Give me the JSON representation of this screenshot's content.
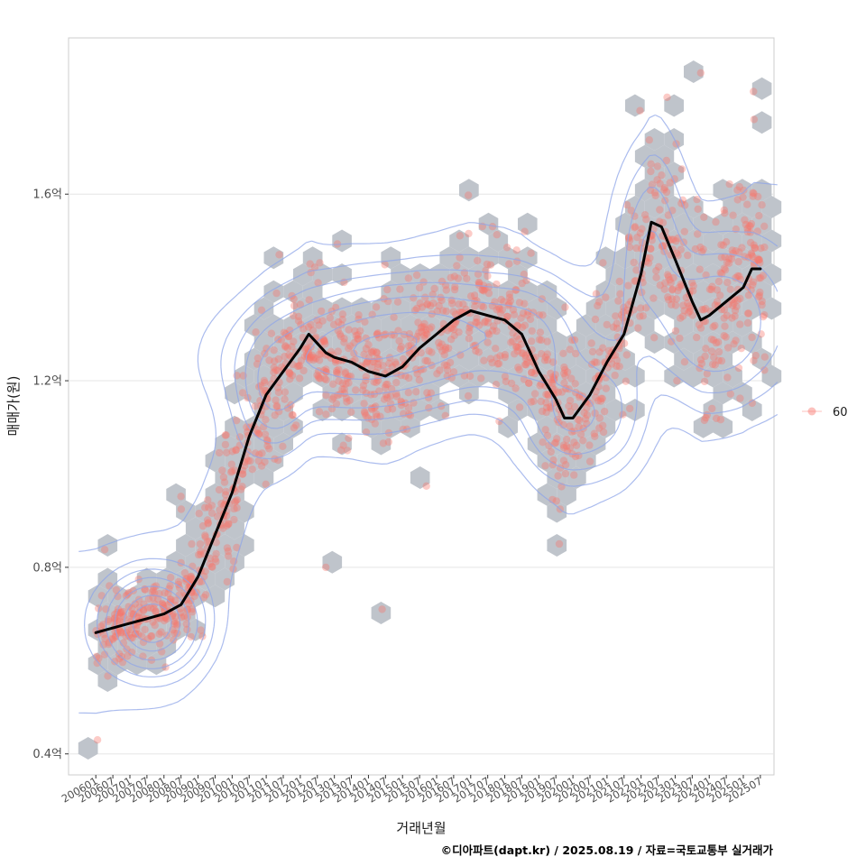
{
  "chart_data": {
    "type": "scatter",
    "xlabel": "거래년월",
    "ylabel": "매매가(원)",
    "caption": "©디아파트(dapt.kr) / 2025.08.19 / 자료=국토교통부 실거래가",
    "x_ticks": [
      "200601",
      "200607",
      "200701",
      "200707",
      "200801",
      "200807",
      "200901",
      "200907",
      "201001",
      "201007",
      "201101",
      "201107",
      "201201",
      "201207",
      "201301",
      "201307",
      "201401",
      "201407",
      "201501",
      "201507",
      "201601",
      "201607",
      "201701",
      "201707",
      "201801",
      "201807",
      "201901",
      "201907",
      "202001",
      "202007",
      "202101",
      "202107",
      "202201",
      "202207",
      "202301",
      "202307",
      "202401",
      "202407",
      "202501",
      "202507"
    ],
    "y_ticks": [
      {
        "value": 0.4,
        "label": "0.4억"
      },
      {
        "value": 0.8,
        "label": "0.8억"
      },
      {
        "value": 1.2,
        "label": "1.2억"
      },
      {
        "value": 1.6,
        "label": "1.6억"
      }
    ],
    "xlim_index": [
      -1.6,
      39.8
    ],
    "ylim": [
      0.355,
      1.935
    ],
    "grid": "horizontal",
    "legend": {
      "position": "right",
      "entries": [
        "60"
      ]
    },
    "series": [
      {
        "name": "moving-average",
        "points": [
          [
            0,
            0.66
          ],
          [
            1,
            0.67
          ],
          [
            2,
            0.68
          ],
          [
            3,
            0.69
          ],
          [
            4,
            0.7
          ],
          [
            5,
            0.72
          ],
          [
            6,
            0.78
          ],
          [
            7,
            0.87
          ],
          [
            8,
            0.96
          ],
          [
            9,
            1.08
          ],
          [
            10,
            1.17
          ],
          [
            11,
            1.22
          ],
          [
            12,
            1.27
          ],
          [
            12.5,
            1.3
          ],
          [
            13,
            1.28
          ],
          [
            13.5,
            1.26
          ],
          [
            14,
            1.25
          ],
          [
            15,
            1.24
          ],
          [
            16,
            1.22
          ],
          [
            17,
            1.21
          ],
          [
            18,
            1.23
          ],
          [
            19,
            1.27
          ],
          [
            20,
            1.3
          ],
          [
            21,
            1.33
          ],
          [
            22,
            1.35
          ],
          [
            23,
            1.34
          ],
          [
            24,
            1.33
          ],
          [
            25,
            1.3
          ],
          [
            26,
            1.22
          ],
          [
            27,
            1.16
          ],
          [
            27.5,
            1.12
          ],
          [
            28,
            1.12
          ],
          [
            29,
            1.17
          ],
          [
            30,
            1.24
          ],
          [
            31,
            1.3
          ],
          [
            32,
            1.43
          ],
          [
            32.6,
            1.54
          ],
          [
            33.2,
            1.53
          ],
          [
            34,
            1.46
          ],
          [
            35,
            1.37
          ],
          [
            35.5,
            1.33
          ],
          [
            36,
            1.34
          ],
          [
            37,
            1.37
          ],
          [
            38,
            1.4
          ],
          [
            38.5,
            1.44
          ],
          [
            39,
            1.44
          ]
        ]
      }
    ],
    "density": {
      "centers": [
        {
          "x": 3.3,
          "y": 0.68,
          "sx": 1.5,
          "sy": 0.055,
          "w": 1.0
        },
        {
          "x": 19.5,
          "y": 1.3,
          "sx": 4.5,
          "sy": 0.075,
          "w": 0.6
        },
        {
          "x": 14.5,
          "y": 1.24,
          "sx": 3.5,
          "sy": 0.07,
          "w": 0.45
        },
        {
          "x": 10.5,
          "y": 1.17,
          "sx": 1.2,
          "sy": 0.07,
          "w": 0.3
        },
        {
          "x": 25.5,
          "y": 1.27,
          "sx": 1.8,
          "sy": 0.08,
          "w": 0.25
        },
        {
          "x": 27.5,
          "y": 1.12,
          "sx": 1.5,
          "sy": 0.07,
          "w": 0.3
        },
        {
          "x": 30.0,
          "y": 1.13,
          "sx": 1.5,
          "sy": 0.08,
          "w": 0.22
        },
        {
          "x": 36.5,
          "y": 1.32,
          "sx": 2.5,
          "sy": 0.1,
          "w": 0.35
        },
        {
          "x": 32.5,
          "y": 1.48,
          "sx": 1.2,
          "sy": 0.12,
          "w": 0.2
        }
      ],
      "levels": [
        0.03,
        0.08,
        0.15,
        0.25,
        0.4,
        0.6,
        0.8
      ]
    },
    "colors": {
      "points": "#f8766d",
      "hex": "#bfc4cb",
      "contour": "#8fa6e8",
      "line": "#000000",
      "grid": "#e5e5e5",
      "panel_border": "#cccccc"
    }
  }
}
